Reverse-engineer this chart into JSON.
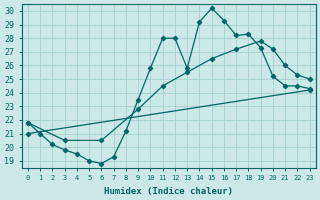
{
  "xlabel": "Humidex (Indice chaleur)",
  "bg_color": "#cce8e8",
  "line_color": "#006666",
  "grid_color": "#aad4d4",
  "xlim": [
    -0.5,
    23.5
  ],
  "ylim": [
    18.5,
    30.5
  ],
  "xticks": [
    0,
    1,
    2,
    3,
    4,
    5,
    6,
    7,
    8,
    9,
    10,
    11,
    12,
    13,
    14,
    15,
    16,
    17,
    18,
    19,
    20,
    21,
    22,
    23
  ],
  "yticks": [
    19,
    20,
    21,
    22,
    23,
    24,
    25,
    26,
    27,
    28,
    29,
    30
  ],
  "curve1_x": [
    0,
    1,
    2,
    3,
    4,
    5,
    6,
    7,
    8,
    9,
    10,
    11,
    12,
    13,
    14,
    15,
    16,
    17,
    18,
    19,
    20,
    21,
    22,
    23
  ],
  "curve1_y": [
    21.8,
    21.0,
    20.2,
    19.8,
    19.5,
    19.0,
    18.8,
    19.3,
    21.2,
    23.5,
    25.8,
    28.0,
    28.0,
    25.8,
    29.2,
    30.2,
    29.3,
    28.2,
    28.3,
    27.3,
    25.2,
    24.5,
    24.5,
    24.3
  ],
  "curve2_x": [
    0,
    3,
    6,
    9,
    11,
    13,
    15,
    17,
    19,
    20,
    21,
    22,
    23
  ],
  "curve2_y": [
    21.8,
    20.5,
    20.5,
    22.8,
    24.5,
    25.5,
    26.5,
    27.2,
    27.8,
    27.2,
    26.0,
    25.3,
    25.0
  ],
  "curve3_x": [
    0,
    23
  ],
  "curve3_y": [
    21.0,
    24.2
  ]
}
